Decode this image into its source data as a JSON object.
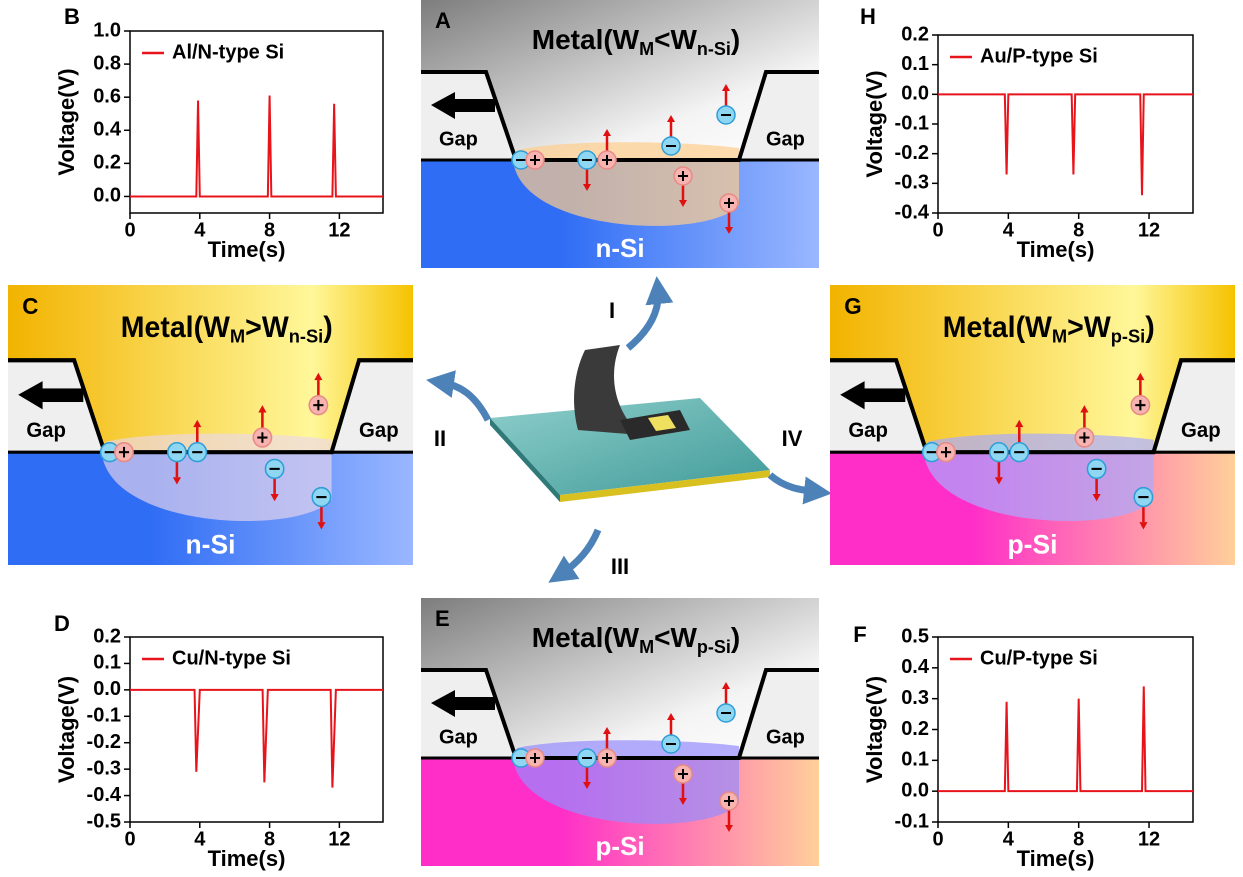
{
  "chart_data": [
    {
      "type": "line",
      "panel": "B",
      "x_label": "Time(s)",
      "y_label": "Voltage(V)",
      "xlim": [
        0,
        14.5
      ],
      "xticks": [
        0,
        4,
        8,
        12
      ],
      "ylim": [
        -0.1,
        1.0
      ],
      "yticks": [
        {
          "value": 0,
          "label": "0.0"
        },
        0.2,
        0.4,
        0.6,
        0.8,
        {
          "value": 1,
          "label": "1.0"
        }
      ],
      "x": [
        0,
        3.8,
        3.9,
        4.0,
        7.9,
        8.0,
        8.1,
        11.6,
        11.7,
        11.8,
        14.5
      ],
      "series": [
        {
          "name": "Al/N-type Si",
          "color": "#e8141c",
          "values": [
            0,
            0,
            0.58,
            0,
            0,
            0.61,
            0,
            0,
            0.56,
            0,
            0
          ]
        }
      ]
    },
    {
      "type": "line",
      "panel": "H",
      "x_label": "Time(s)",
      "y_label": "Voltage(V)",
      "xlim": [
        0,
        14.5
      ],
      "xticks": [
        0,
        4,
        8,
        12
      ],
      "ylim": [
        -0.4,
        0.2
      ],
      "yticks": [
        -0.4,
        -0.3,
        -0.2,
        -0.1,
        {
          "value": 0,
          "label": "0.0"
        },
        0.1,
        0.2
      ],
      "x": [
        0,
        3.8,
        3.9,
        4.0,
        7.6,
        7.7,
        7.8,
        11.5,
        11.6,
        11.7,
        14.5
      ],
      "series": [
        {
          "name": "Au/P-type Si",
          "color": "#e8141c",
          "values": [
            0,
            0,
            -0.27,
            0,
            0,
            -0.27,
            0,
            0,
            -0.34,
            0,
            0
          ]
        }
      ]
    },
    {
      "type": "line",
      "panel": "D",
      "x_label": "Time(s)",
      "y_label": "Voltage(V)",
      "xlim": [
        0,
        14.5
      ],
      "xticks": [
        0,
        4,
        8,
        12
      ],
      "ylim": [
        -0.5,
        0.2
      ],
      "yticks": [
        -0.5,
        -0.4,
        -0.3,
        -0.2,
        -0.1,
        {
          "value": 0,
          "label": "0.0"
        },
        0.1,
        0.2
      ],
      "x": [
        0,
        3.7,
        3.8,
        4.0,
        7.6,
        7.7,
        7.9,
        11.5,
        11.6,
        11.8,
        14.5
      ],
      "series": [
        {
          "name": "Cu/N-type Si",
          "color": "#e8141c",
          "values": [
            0,
            0,
            -0.31,
            0,
            0,
            -0.35,
            0,
            0,
            -0.37,
            0,
            0
          ]
        }
      ]
    },
    {
      "type": "line",
      "panel": "F",
      "x_label": "Time(s)",
      "y_label": "Voltage(V)",
      "xlim": [
        0,
        14.5
      ],
      "xticks": [
        0,
        4,
        8,
        12
      ],
      "ylim": [
        -0.1,
        0.5
      ],
      "yticks": [
        -0.1,
        {
          "value": 0,
          "label": "0.0"
        },
        0.1,
        0.2,
        0.3,
        0.4,
        0.5
      ],
      "x": [
        0,
        3.8,
        3.9,
        4.0,
        7.9,
        8.0,
        8.1,
        11.6,
        11.7,
        11.8,
        14.5
      ],
      "series": [
        {
          "name": "Cu/P-type Si",
          "color": "#e8141c",
          "values": [
            0,
            0,
            0.29,
            0,
            0,
            0.3,
            0,
            0,
            0.34,
            0,
            0
          ]
        }
      ]
    }
  ],
  "diagrams": [
    {
      "letter": "A",
      "title": [
        "Metal(W",
        "M",
        "<W",
        "n-Si",
        ")"
      ],
      "gap_left": "Gap",
      "gap_right": "Gap",
      "semiconductor": "n-Si"
    },
    {
      "letter": "C",
      "title": [
        "Metal(W",
        "M",
        ">W",
        "n-Si",
        ")"
      ],
      "gap_left": "Gap",
      "gap_right": "Gap",
      "semiconductor": "n-Si"
    },
    {
      "letter": "G",
      "title": [
        "Metal(W",
        "M",
        ">W",
        "p-Si",
        ")"
      ],
      "gap_left": "Gap",
      "gap_right": "Gap",
      "semiconductor": "p-Si"
    },
    {
      "letter": "E",
      "title": [
        "Metal(W",
        "M",
        "<W",
        "p-Si",
        ")"
      ],
      "gap_left": "Gap",
      "gap_right": "Gap",
      "semiconductor": "p-Si"
    }
  ],
  "center": {
    "labels": [
      "I",
      "II",
      "III",
      "IV"
    ]
  }
}
